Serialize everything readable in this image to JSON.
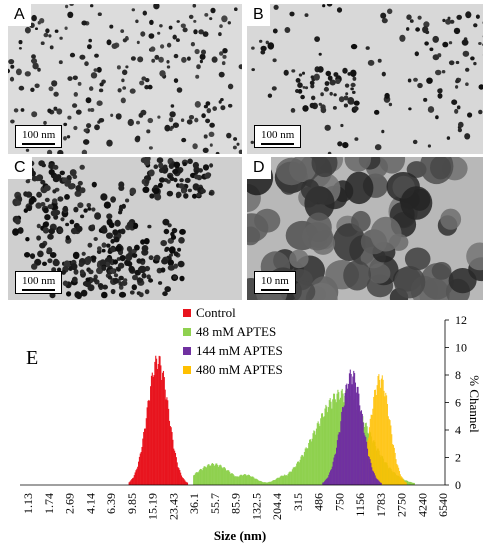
{
  "panels": [
    {
      "id": "A",
      "label": "A",
      "scale": "100 nm"
    },
    {
      "id": "B",
      "label": "B",
      "scale": "100 nm"
    },
    {
      "id": "C",
      "label": "C",
      "scale": "100 nm"
    },
    {
      "id": "D",
      "label": "D",
      "scale": "10 nm"
    }
  ],
  "chart_label": "E",
  "colors": {
    "control": "#e8141e",
    "aptes48": "#8fd14f",
    "aptes144": "#7030a0",
    "aptes480": "#ffc000"
  },
  "chart_data": {
    "type": "bar",
    "xlabel": "Size (nm)",
    "ylabel": "% Channel",
    "ylim": [
      0,
      12
    ],
    "yticks": [
      "0",
      "2",
      "4",
      "6",
      "8",
      "10",
      "12"
    ],
    "x_ticks": [
      "1.13",
      "1.74",
      "2.69",
      "4.14",
      "6.39",
      "9.85",
      "15.19",
      "23.43",
      "36.1",
      "55.7",
      "85.9",
      "132.5",
      "204.4",
      "315",
      "486",
      "750",
      "1156",
      "1783",
      "2750",
      "4240",
      "6540"
    ],
    "series": [
      {
        "name": "Control",
        "peaks": [
          {
            "x": 18.0,
            "y": 9.6
          }
        ],
        "range": [
          9.85,
          36.1
        ]
      },
      {
        "name": "48 mM APTES",
        "peaks": [
          {
            "x": 58.0,
            "y": 1.6
          },
          {
            "x": 850,
            "y": 7.0
          }
        ],
        "range": [
          36.1,
          5000
        ]
      },
      {
        "name": "144 mM APTES",
        "peaks": [
          {
            "x": 1050,
            "y": 8.5
          }
        ],
        "range": [
          486,
          2000
        ]
      },
      {
        "name": "480 mM APTES",
        "peaks": [
          {
            "x": 1900,
            "y": 8.2
          }
        ],
        "range": [
          700,
          5000
        ]
      }
    ]
  }
}
